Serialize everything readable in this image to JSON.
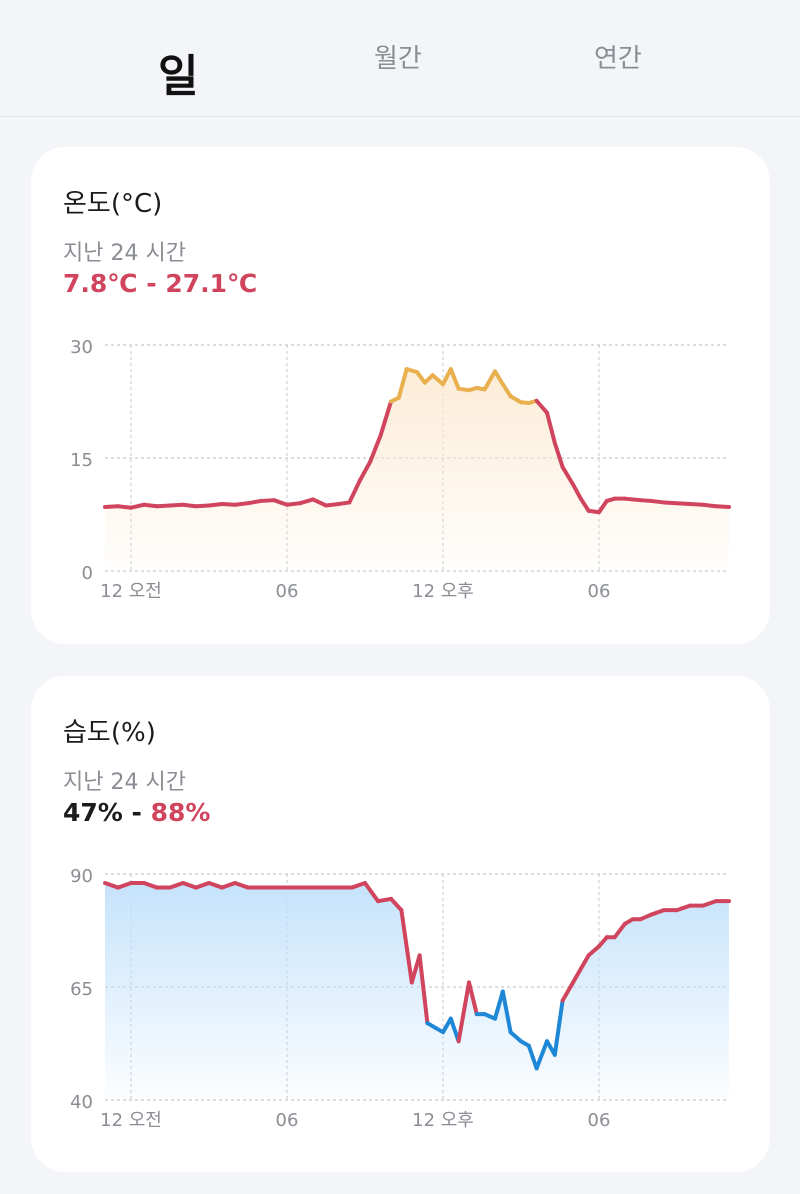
{
  "tabs": [
    {
      "label": "일",
      "active": true
    },
    {
      "label": "월간",
      "active": false
    },
    {
      "label": "연간",
      "active": false
    }
  ],
  "temperature": {
    "title": "온도(°C)",
    "subtitle": "지난 24 시간",
    "range": "7.8℃ - 27.1℃",
    "colors": {
      "line": "#d0455d",
      "highlight": "#e8b04e",
      "fill": "#fbe9cf"
    }
  },
  "humidity": {
    "title": "습도(%)",
    "subtitle": "지난 24 시간",
    "range_min": "47%",
    "range_sep": " - ",
    "range_max": "88%",
    "colors": {
      "line": "#d0455d",
      "highlight": "#1e88d6",
      "fill": "#bfe0fb"
    }
  },
  "chart_data": [
    {
      "type": "area",
      "title": "온도(°C)",
      "x_ticks": [
        "12 오전",
        "06",
        "12 오후",
        "06"
      ],
      "x_tick_hours": [
        1,
        7,
        13,
        19
      ],
      "xlim": [
        0,
        24
      ],
      "ylim": [
        0,
        30
      ],
      "y_ticks": [
        30,
        15,
        0
      ],
      "grid": true,
      "threshold_high": 22,
      "x": [
        0,
        0.5,
        1,
        1.5,
        2,
        2.5,
        3,
        3.5,
        4,
        4.5,
        5,
        5.5,
        6,
        6.5,
        7,
        7.5,
        8,
        8.5,
        9,
        9.4,
        9.8,
        10.2,
        10.6,
        11,
        11.3,
        11.6,
        12,
        12.3,
        12.6,
        13,
        13.3,
        13.6,
        14,
        14.3,
        14.6,
        15,
        15.3,
        15.6,
        16,
        16.3,
        16.6,
        17,
        17.3,
        17.6,
        18,
        18.3,
        18.6,
        19,
        19.3,
        19.6,
        20,
        20.3,
        20.6,
        21,
        21.5,
        22,
        22.5,
        23,
        23.5,
        24
      ],
      "values": [
        8.5,
        8.6,
        8.4,
        8.8,
        8.6,
        8.7,
        8.8,
        8.6,
        8.7,
        8.9,
        8.8,
        9.0,
        9.3,
        9.4,
        8.8,
        9.0,
        9.5,
        8.7,
        8.9,
        9.1,
        12.0,
        14.5,
        18.0,
        22.5,
        23.0,
        26.8,
        26.4,
        25.0,
        26.0,
        24.8,
        26.8,
        24.2,
        24.0,
        24.3,
        24.1,
        26.5,
        24.8,
        23.2,
        22.4,
        22.3,
        22.6,
        21.0,
        17.0,
        13.8,
        11.5,
        9.6,
        8.0,
        7.8,
        9.3,
        9.6,
        9.6,
        9.5,
        9.4,
        9.3,
        9.1,
        9.0,
        8.9,
        8.8,
        8.6,
        8.5
      ]
    },
    {
      "type": "area",
      "title": "습도(%)",
      "x_ticks": [
        "12 오전",
        "06",
        "12 오후",
        "06"
      ],
      "x_tick_hours": [
        1,
        7,
        13,
        19
      ],
      "xlim": [
        0,
        24
      ],
      "ylim": [
        40,
        90
      ],
      "y_ticks": [
        90,
        65,
        40
      ],
      "grid": true,
      "threshold_low": 64,
      "x": [
        0,
        0.5,
        1,
        1.5,
        2,
        2.5,
        3,
        3.5,
        4,
        4.5,
        5,
        5.5,
        6,
        6.5,
        7,
        7.5,
        8,
        8.5,
        9,
        9.5,
        10,
        10.5,
        11,
        11.4,
        11.8,
        12.1,
        12.4,
        12.7,
        13,
        13.3,
        13.6,
        14,
        14.3,
        14.6,
        15,
        15.3,
        15.6,
        16,
        16.3,
        16.6,
        17,
        17.3,
        17.6,
        18,
        18.3,
        18.6,
        19,
        19.3,
        19.6,
        20,
        20.3,
        20.6,
        21,
        21.5,
        22,
        22.5,
        23,
        23.5,
        24
      ],
      "values": [
        88,
        87,
        88,
        88,
        87,
        87,
        88,
        87,
        88,
        87,
        88,
        87,
        87,
        87,
        87,
        87,
        87,
        87,
        87,
        87,
        88,
        84,
        84.5,
        82,
        66,
        72,
        57,
        56,
        55,
        58,
        53,
        66,
        59,
        59,
        58,
        64,
        55,
        53,
        52,
        47,
        53,
        50,
        62,
        66,
        69,
        72,
        74,
        76,
        76,
        79,
        80,
        80,
        81,
        82,
        82,
        83,
        83,
        84,
        84
      ]
    }
  ]
}
